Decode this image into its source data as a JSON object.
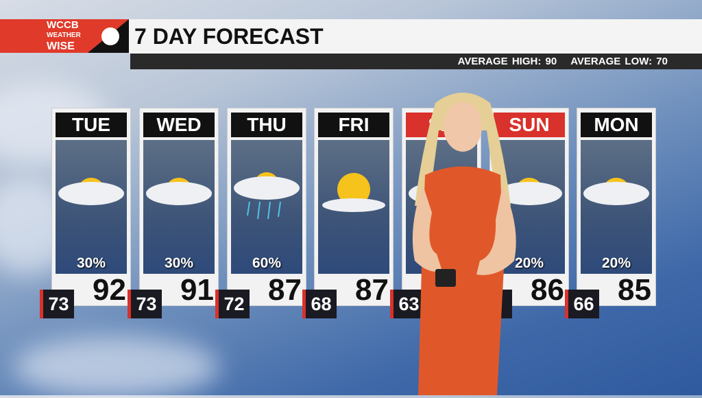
{
  "logo": {
    "line1": "WCCB",
    "line2": "WEATHER",
    "line3": "WISE"
  },
  "title": "7 DAY FORECAST",
  "averages": {
    "high": "AVERAGE HIGH: 90",
    "low": "AVERAGE LOW: 70"
  },
  "days": [
    {
      "day": "TUE",
      "pct": "30%",
      "high": "92",
      "low": "73",
      "icon": "partly-cloudy-icon",
      "weekend": false
    },
    {
      "day": "WED",
      "pct": "30%",
      "high": "91",
      "low": "73",
      "icon": "partly-cloudy-icon",
      "weekend": false
    },
    {
      "day": "THU",
      "pct": "60%",
      "high": "87",
      "low": "72",
      "icon": "rain-cloud-sun-icon",
      "weekend": false
    },
    {
      "day": "FRI",
      "pct": "",
      "high": "87",
      "low": "68",
      "icon": "mostly-sunny-icon",
      "weekend": false
    },
    {
      "day": "SA",
      "pct": "",
      "high": "",
      "low": "63",
      "icon": "partly-cloudy-icon",
      "weekend": true
    },
    {
      "day": "SUN",
      "pct": "20%",
      "high": "86",
      "low": "4",
      "icon": "partly-cloudy-icon",
      "weekend": true
    },
    {
      "day": "MON",
      "pct": "20%",
      "high": "85",
      "low": "66",
      "icon": "partly-cloudy-icon",
      "weekend": false
    }
  ],
  "colors": {
    "accent": "#d9312b",
    "header_dark": "#2a2a2a",
    "dress": "#e0582a"
  }
}
